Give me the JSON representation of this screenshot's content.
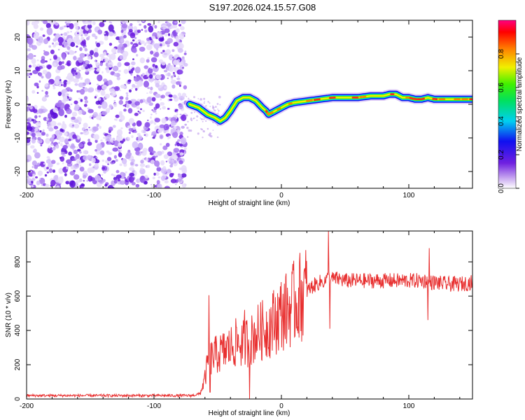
{
  "title": "S197.2026.024.15.57.G08",
  "chart_data": [
    {
      "type": "heatmap",
      "name": "spectrogram",
      "xlabel": "Height of straight line (km)",
      "ylabel": "Frequency (Hz)",
      "xlim": [
        -200,
        150
      ],
      "ylim": [
        -25,
        25
      ],
      "xticks": [
        -200,
        -100,
        0,
        100
      ],
      "xtick_labels": [
        "-200",
        "-100",
        "0",
        "100"
      ],
      "yticks": [
        -20,
        -10,
        0,
        10,
        20
      ],
      "ytick_labels": [
        "-20",
        "-10",
        "0",
        "10",
        "20"
      ],
      "noise_region_x": [
        -200,
        -75
      ],
      "ridge": {
        "x": [
          -72,
          -65,
          -58,
          -52,
          -48,
          -44,
          -40,
          -35,
          -30,
          -25,
          -20,
          -15,
          -12,
          -10,
          -5,
          0,
          5,
          10,
          20,
          30,
          40,
          50,
          60,
          70,
          80,
          85,
          90,
          95,
          100,
          105,
          110,
          115,
          120,
          130,
          140,
          150
        ],
        "freq": [
          0,
          -1,
          -3,
          -4,
          -5,
          -4,
          -2,
          1,
          2,
          2,
          1,
          -1,
          -2,
          -3,
          -2,
          -1,
          0,
          0.5,
          1,
          1.5,
          2,
          2,
          2,
          2.5,
          2.5,
          3,
          3,
          2,
          2,
          1.5,
          1.5,
          2,
          1.5,
          1.5,
          1.5,
          1.5
        ]
      },
      "colorbar": {
        "label": "Normalized spectral amplitude",
        "range": [
          0,
          1
        ],
        "ticks": [
          0,
          0.2,
          0.4,
          0.6,
          0.8
        ],
        "tick_labels": [
          "0.0",
          "0.2",
          "0.4",
          "0.6",
          "0.8"
        ]
      }
    },
    {
      "type": "line",
      "name": "snr",
      "xlabel": "Height of straight line (km)",
      "ylabel": "SNR (10 * v/v)",
      "xlim": [
        -200,
        150
      ],
      "ylim": [
        0,
        980
      ],
      "xticks": [
        -200,
        -100,
        0,
        100
      ],
      "xtick_labels": [
        "-200",
        "-100",
        "0",
        "100"
      ],
      "yticks": [
        0,
        200,
        400,
        600,
        800
      ],
      "ytick_labels": [
        "0",
        "200",
        "400",
        "600",
        "800"
      ],
      "series": [
        {
          "name": "SNR",
          "color": "#e83030",
          "x": [
            -200,
            -180,
            -160,
            -140,
            -120,
            -100,
            -80,
            -70,
            -64,
            -62,
            -60,
            -58,
            -56,
            -54,
            -50,
            -45,
            -40,
            -35,
            -30,
            -28,
            -25,
            -20,
            -15,
            -10,
            -5,
            0,
            5,
            10,
            15,
            20,
            25,
            30,
            35,
            37,
            40,
            45,
            50,
            60,
            70,
            80,
            90,
            100,
            110,
            114,
            116,
            120,
            130,
            140,
            150
          ],
          "mean": [
            20,
            20,
            20,
            20,
            20,
            20,
            20,
            20,
            30,
            70,
            120,
            200,
            230,
            250,
            260,
            280,
            300,
            330,
            320,
            340,
            330,
            380,
            400,
            420,
            460,
            500,
            520,
            560,
            600,
            630,
            660,
            680,
            690,
            710,
            700,
            700,
            690,
            690,
            690,
            690,
            690,
            690,
            690,
            690,
            680,
            680,
            670,
            670,
            680
          ],
          "spikes": [
            {
              "x": -57,
              "y": 605
            },
            {
              "x": -56,
              "y": 40
            },
            {
              "x": -29,
              "y": 520
            },
            {
              "x": -25,
              "y": 0
            },
            {
              "x": 37,
              "y": 980
            },
            {
              "x": 38,
              "y": 410
            },
            {
              "x": 116,
              "y": 880
            },
            {
              "x": 115,
              "y": 460
            }
          ]
        }
      ]
    }
  ]
}
